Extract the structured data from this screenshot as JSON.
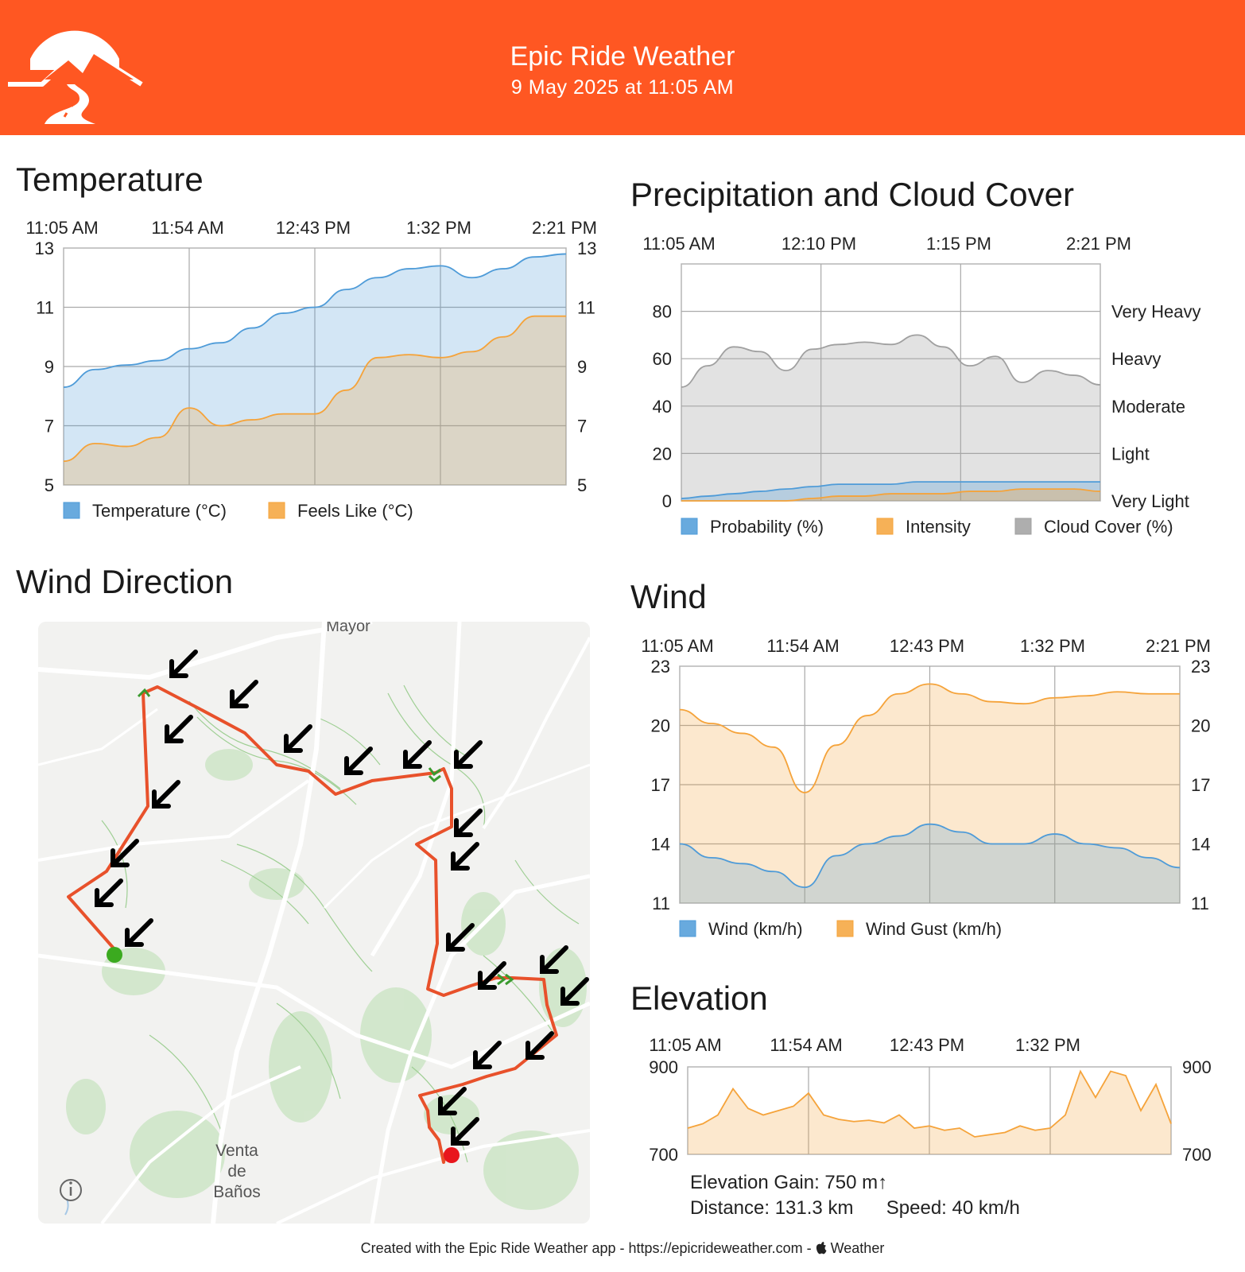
{
  "header": {
    "title": "Epic Ride Weather",
    "date": "9 May 2025 at 11:05 AM",
    "accent_color": "#FF5722",
    "logo_icon": "mountain-road-logo"
  },
  "sections": {
    "temperature": "Temperature",
    "precipitation": "Precipitation and Cloud Cover",
    "wind_direction": "Wind Direction",
    "wind": "Wind",
    "elevation": "Elevation"
  },
  "map": {
    "place_top": "Mayor",
    "place_bottom": [
      "Venta",
      "de",
      "Baños"
    ],
    "info_icon": "info-icon",
    "route_color": "#E8512B",
    "start_color": "#3BAA1F",
    "end_color": "#E8161D"
  },
  "stats": {
    "elevation_gain": "Elevation Gain: 750 m↑",
    "distance": "Distance: 131.3 km",
    "speed": "Speed: 40 km/h"
  },
  "footer": {
    "text": "Created with the Epic Ride Weather app - https://epicrideweather.com - ",
    "weather_label": "Weather",
    "apple_icon": "apple-icon"
  },
  "chart_data": [
    {
      "id": "temperature",
      "type": "area",
      "x_ticks": [
        "11:05 AM",
        "11:54 AM",
        "12:43 PM",
        "1:32 PM",
        "2:21 PM"
      ],
      "ylim": [
        5,
        13
      ],
      "y_ticks": [
        "13",
        "11",
        "9",
        "7",
        "5"
      ],
      "x": [
        0,
        0.5,
        1,
        1.5,
        2,
        2.5,
        3,
        3.5,
        4,
        4.5,
        5,
        5.5,
        6,
        6.5,
        7,
        7.5,
        8
      ],
      "series": [
        {
          "name": "Temperature (°C)",
          "color": "#4E9BD8",
          "values": [
            8.3,
            8.9,
            9.05,
            9.2,
            9.6,
            9.8,
            10.3,
            10.8,
            11.0,
            11.6,
            12.0,
            12.3,
            12.4,
            12.0,
            12.3,
            12.7,
            12.8
          ]
        },
        {
          "name": "Feels Like (°C)",
          "color": "#F5A33A",
          "values": [
            5.8,
            6.4,
            6.3,
            6.6,
            7.6,
            7.0,
            7.2,
            7.4,
            7.4,
            8.2,
            9.3,
            9.4,
            9.3,
            9.5,
            10.0,
            10.7,
            10.7
          ]
        }
      ],
      "grid": true,
      "legend": "bottom-left"
    },
    {
      "id": "precipitation",
      "type": "area",
      "x_ticks": [
        "11:05 AM",
        "12:10 PM",
        "1:15 PM",
        "2:21 PM"
      ],
      "ylim": [
        0,
        100
      ],
      "y_ticks": [
        "80",
        "60",
        "40",
        "20",
        "0"
      ],
      "y_ticks_right": [
        "Very Heavy",
        "Heavy",
        "Moderate",
        "Light",
        "Very Light"
      ],
      "x": [
        0,
        0.5,
        1,
        1.5,
        2,
        2.5,
        3,
        3.5,
        4,
        4.5,
        5,
        5.5,
        6,
        6.5,
        7,
        7.5,
        8
      ],
      "series": [
        {
          "name": "Probability (%)",
          "color": "#4E9BD8",
          "values": [
            1,
            2,
            3,
            4,
            5,
            6,
            7,
            7,
            7,
            8,
            8,
            8,
            8,
            8,
            8,
            8,
            8
          ]
        },
        {
          "name": "Intensity",
          "color": "#F5A33A",
          "values": [
            0,
            0,
            0,
            0,
            0,
            1,
            2,
            2,
            3,
            3,
            3,
            4,
            4,
            5,
            5,
            5,
            4
          ]
        },
        {
          "name": "Cloud Cover (%)",
          "color": "#A0A0A0",
          "values": [
            48,
            57,
            65,
            63,
            55,
            64,
            66,
            67,
            66,
            70,
            65,
            57,
            61,
            50,
            55,
            53,
            49
          ]
        }
      ],
      "grid": true,
      "legend": "bottom-left"
    },
    {
      "id": "wind",
      "type": "area",
      "x_ticks": [
        "11:05 AM",
        "11:54 AM",
        "12:43 PM",
        "1:32 PM",
        "2:21 PM"
      ],
      "ylim": [
        11,
        23
      ],
      "y_ticks": [
        "23",
        "20",
        "17",
        "14",
        "11"
      ],
      "x": [
        0,
        0.5,
        1,
        1.5,
        2,
        2.5,
        3,
        3.5,
        4,
        4.5,
        5,
        5.5,
        6,
        6.5,
        7,
        7.5,
        8
      ],
      "series": [
        {
          "name": "Wind (km/h)",
          "color": "#4E9BD8",
          "values": [
            14.0,
            13.3,
            13.0,
            12.6,
            11.8,
            13.4,
            14.0,
            14.4,
            15.0,
            14.6,
            14.0,
            14.0,
            14.5,
            14.0,
            13.8,
            13.3,
            12.8
          ]
        },
        {
          "name": "Wind Gust (km/h)",
          "color": "#F5A33A",
          "values": [
            20.8,
            20.1,
            19.6,
            18.9,
            16.6,
            19.0,
            20.5,
            21.6,
            22.1,
            21.6,
            21.2,
            21.1,
            21.4,
            21.5,
            21.7,
            21.6,
            21.6
          ]
        }
      ],
      "grid": true,
      "legend": "bottom-left"
    },
    {
      "id": "elevation",
      "type": "area",
      "x_ticks": [
        "11:05 AM",
        "11:54 AM",
        "12:43 PM",
        "1:32 PM"
      ],
      "ylim": [
        700,
        900
      ],
      "y_ticks": [
        "900",
        "700"
      ],
      "x": [
        0,
        0.25,
        0.5,
        0.75,
        1,
        1.25,
        1.5,
        1.75,
        2,
        2.25,
        2.5,
        2.75,
        3,
        3.25,
        3.5,
        3.75,
        4,
        4.25,
        4.5,
        4.75,
        5,
        5.25,
        5.5,
        5.75,
        6,
        6.25,
        6.5,
        6.75,
        7,
        7.25,
        7.5,
        7.75,
        8
      ],
      "series": [
        {
          "name": "Elevation",
          "color": "#F5A33A",
          "values": [
            760,
            770,
            790,
            850,
            805,
            790,
            800,
            810,
            840,
            790,
            780,
            775,
            778,
            772,
            790,
            760,
            765,
            755,
            760,
            740,
            745,
            750,
            765,
            755,
            760,
            790,
            890,
            830,
            890,
            880,
            800,
            860,
            770
          ]
        }
      ],
      "grid": true,
      "legend": "none"
    }
  ]
}
